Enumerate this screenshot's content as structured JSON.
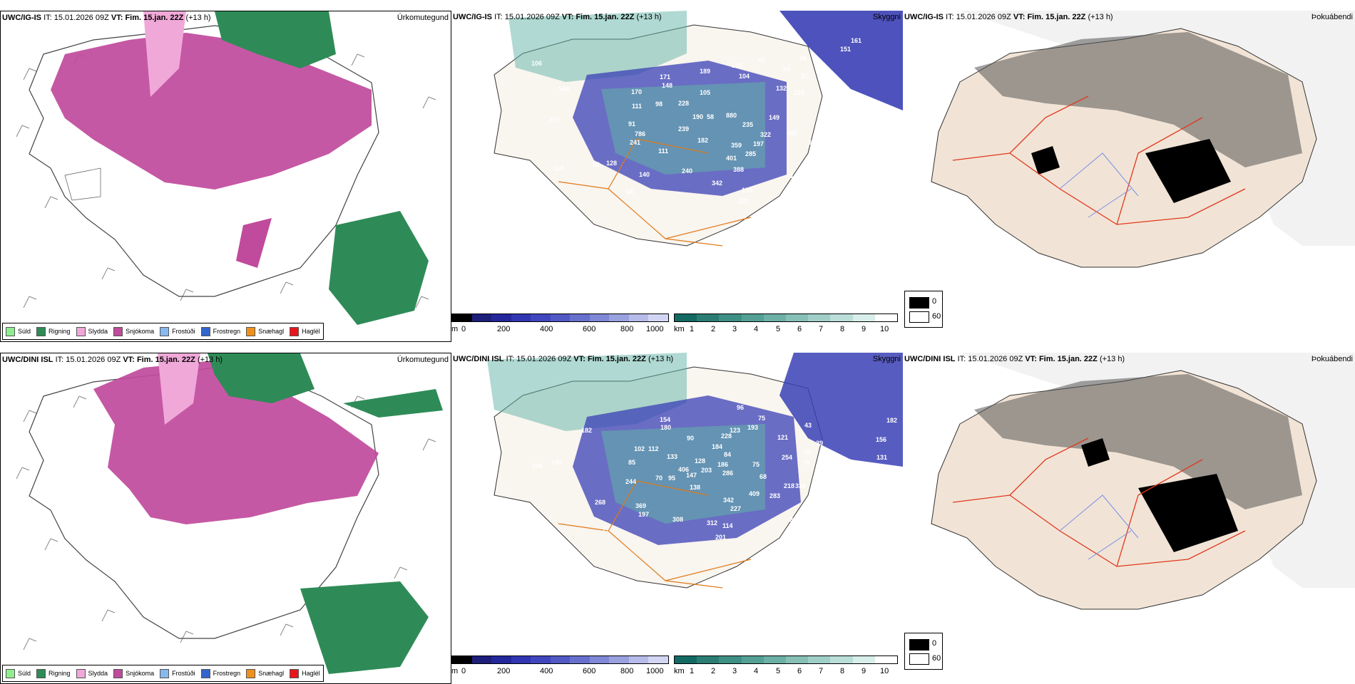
{
  "rows": [
    {
      "model": "UWC/IG-IS",
      "it_label": "IT:",
      "it_value": "15.01.2026 09Z",
      "vt_label": "VT:",
      "vt_value": "Fim. 15.jan. 22Z",
      "lead": "(+13 h)",
      "panels": [
        "Úrkomutegund",
        "Skyggni",
        "Þokuábendi"
      ],
      "visibility_numbers": [
        "161",
        "151",
        "92",
        "48",
        "54",
        "37",
        "55",
        "88",
        "110",
        "135",
        "104",
        "132",
        "126",
        "144",
        "106",
        "105",
        "189",
        "171",
        "148",
        "170",
        "111",
        "98",
        "228",
        "190",
        "58",
        "880",
        "235",
        "149",
        "130",
        "597",
        "91",
        "786",
        "239",
        "182",
        "241",
        "111",
        "322",
        "680",
        "359",
        "197",
        "386",
        "401",
        "285",
        "342",
        "388",
        "140",
        "240",
        "128",
        "82",
        "118",
        "32",
        "68",
        "155",
        "192",
        "11",
        "14"
      ]
    },
    {
      "model": "UWC/DINI ISL",
      "it_label": "IT:",
      "it_value": "15.01.2026 09Z",
      "vt_label": "VT:",
      "vt_value": "Fim. 15.jan. 22Z",
      "lead": "(+13 h)",
      "panels": [
        "Úrkomutegund",
        "Skyggni",
        "Þokuábendi"
      ],
      "visibility_numbers": [
        "96",
        "75",
        "43",
        "182",
        "156",
        "131",
        "48",
        "39",
        "50",
        "123",
        "193",
        "121",
        "228",
        "180",
        "154",
        "90",
        "184",
        "84",
        "102",
        "112",
        "133",
        "406",
        "128",
        "203",
        "186",
        "254",
        "79",
        "85",
        "244",
        "70",
        "95",
        "147",
        "286",
        "75",
        "68",
        "218",
        "334",
        "182",
        "140",
        "369",
        "138",
        "268",
        "409",
        "283",
        "197",
        "342",
        "227",
        "308",
        "312",
        "114",
        "201",
        "28",
        "15",
        "79",
        "77",
        "106"
      ]
    }
  ],
  "precip_legend": [
    {
      "label": "Súld",
      "color": "#90ee90"
    },
    {
      "label": "Rigning",
      "color": "#2e8b57"
    },
    {
      "label": "Slydda",
      "color": "#f0a8d8"
    },
    {
      "label": "Snjókoma",
      "color": "#c04a9c"
    },
    {
      "label": "Frostúði",
      "color": "#87b8ee"
    },
    {
      "label": "Frostregn",
      "color": "#3366cc"
    },
    {
      "label": "Snæhagl",
      "color": "#f0901a"
    },
    {
      "label": "Haglél",
      "color": "#e8161c"
    }
  ],
  "ceiling_scale": {
    "unit": "m",
    "ticks": [
      "0",
      "200",
      "400",
      "600",
      "800",
      "1000"
    ]
  },
  "visibility_scale": {
    "unit": "km",
    "ticks": [
      "1",
      "2",
      "3",
      "4",
      "5",
      "6",
      "7",
      "8",
      "9",
      "10"
    ]
  },
  "fog_scale": {
    "high": "0",
    "low": "60"
  }
}
